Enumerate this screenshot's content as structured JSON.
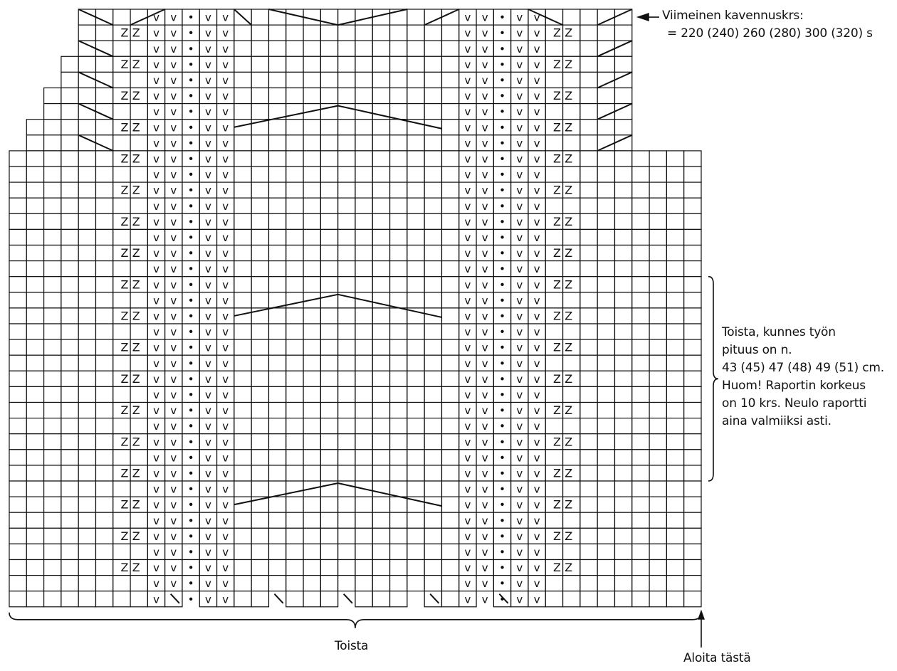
{
  "notes": {
    "last_decrease_title": "Viimeinen kavennuskrs:",
    "last_decrease_count": "= 220 (240) 260 (280) 300 (320) s",
    "repeat_instruction": [
      "Toista, kunnes työn",
      "pituus on n.",
      "43 (45) 47 (48) 49 (51) cm.",
      "Huom! Raportin korkeus",
      "on 10 krs. Neulo raportti",
      "aina valmiiksi asti."
    ],
    "repeat_label": "Toista",
    "start_label": "Aloita tästä"
  },
  "symbols": {
    "slip": "v",
    "purl": "•",
    "twist": "Z"
  }
}
